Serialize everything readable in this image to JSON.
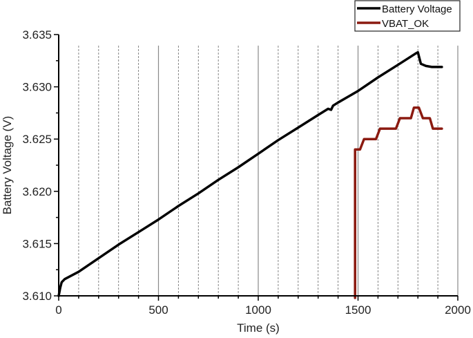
{
  "chart_data": {
    "type": "line",
    "title": "",
    "xlabel": "Time (s)",
    "ylabel": "Battery Voltage (V)",
    "xlim": [
      0,
      2000
    ],
    "ylim": [
      3.61,
      3.635
    ],
    "x_ticks": [
      0,
      500,
      1000,
      1500,
      2000
    ],
    "x_tick_labels": [
      "0",
      "500",
      "1000",
      "1500",
      "2000"
    ],
    "x_minor_step": 100,
    "y_ticks": [
      3.61,
      3.615,
      3.62,
      3.625,
      3.63,
      3.635
    ],
    "y_tick_labels": [
      "3.610",
      "3.615",
      "3.620",
      "3.625",
      "3.630",
      "3.635"
    ],
    "grid": {
      "vertical_major": "solid",
      "vertical_minor": "dashed",
      "horizontal": false
    },
    "legend_position": "top-right",
    "series": [
      {
        "name": "Battery Voltage",
        "color": "#000000",
        "x": [
          0,
          8,
          15,
          30,
          100,
          200,
          300,
          400,
          500,
          600,
          700,
          800,
          900,
          1000,
          1100,
          1200,
          1300,
          1350,
          1365,
          1375,
          1400,
          1500,
          1600,
          1700,
          1790,
          1800,
          1815,
          1840,
          1870,
          1920
        ],
        "y": [
          3.61,
          3.6108,
          3.6113,
          3.6116,
          3.6123,
          3.6136,
          3.6149,
          3.6161,
          3.6173,
          3.6186,
          3.6198,
          3.6211,
          3.6223,
          3.6236,
          3.6249,
          3.6261,
          3.6273,
          3.6279,
          3.6278,
          3.6282,
          3.6285,
          3.6296,
          3.6309,
          3.6321,
          3.6332,
          3.6333,
          3.6322,
          3.632,
          3.6319,
          3.6319
        ]
      },
      {
        "name": "VBAT_OK",
        "color": "#8b1a10",
        "x": [
          1485,
          1485,
          1510,
          1530,
          1590,
          1610,
          1690,
          1710,
          1765,
          1780,
          1805,
          1825,
          1860,
          1875,
          1920
        ],
        "y": [
          3.605,
          3.624,
          3.624,
          3.625,
          3.625,
          3.626,
          3.626,
          3.627,
          3.627,
          3.628,
          3.628,
          3.627,
          3.627,
          3.626,
          3.626
        ]
      }
    ]
  },
  "legend": {
    "items": [
      {
        "label": "Battery Voltage",
        "color": "#000000"
      },
      {
        "label": "VBAT_OK",
        "color": "#8b1a10"
      }
    ]
  }
}
